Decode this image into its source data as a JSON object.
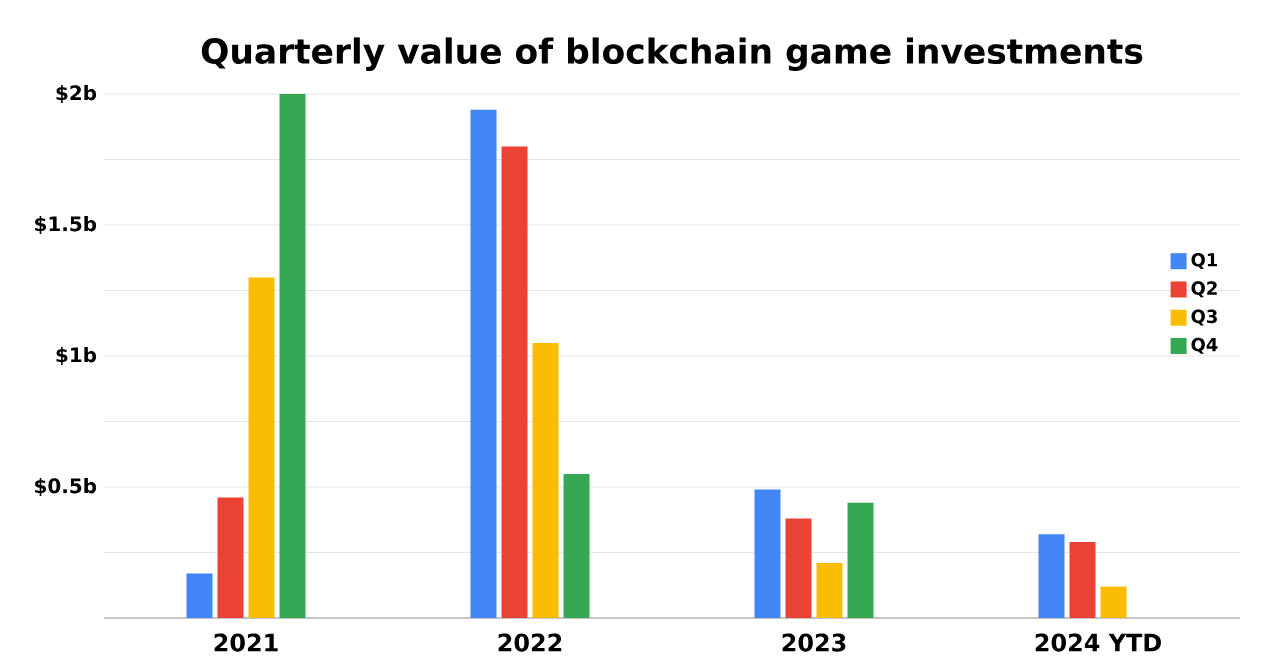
{
  "chart_data": {
    "type": "bar",
    "title": "Quarterly value of blockchain game investments",
    "categories": [
      "2021",
      "2022",
      "2023",
      "2024 YTD"
    ],
    "series": [
      {
        "name": "Q1",
        "color": "#4285f4",
        "values": [
          0.17,
          1.94,
          0.49,
          0.32
        ]
      },
      {
        "name": "Q2",
        "color": "#ea4335",
        "values": [
          0.46,
          1.8,
          0.38,
          0.29
        ]
      },
      {
        "name": "Q3",
        "color": "#fbbc04",
        "values": [
          1.3,
          1.05,
          0.21,
          0.12
        ]
      },
      {
        "name": "Q4",
        "color": "#34a853",
        "values": [
          2.0,
          0.55,
          0.44,
          null
        ]
      }
    ],
    "ylim": [
      0,
      2
    ],
    "yticks": [
      {
        "value": 0,
        "label": null
      },
      {
        "value": 0.25,
        "label": null
      },
      {
        "value": 0.5,
        "label": "$0.5b"
      },
      {
        "value": 0.75,
        "label": null
      },
      {
        "value": 1,
        "label": "$1b"
      },
      {
        "value": 1.25,
        "label": null
      },
      {
        "value": 1.5,
        "label": "$1.5b"
      },
      {
        "value": 1.75,
        "label": null
      },
      {
        "value": 2,
        "label": "$2b"
      }
    ],
    "grid": "y",
    "legend": "right"
  }
}
